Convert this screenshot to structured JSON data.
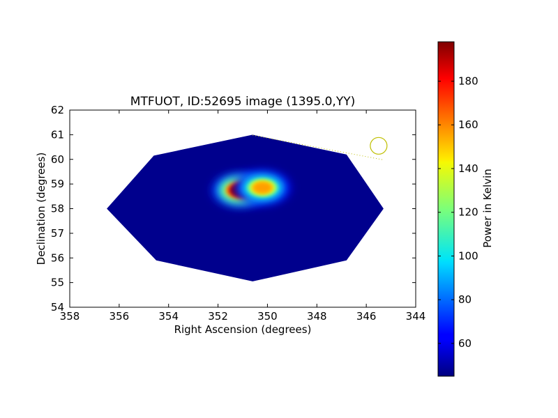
{
  "chart_data": {
    "type": "heatmap",
    "title": "MTFUOT, ID:52695 image (1395.0,YY)",
    "xlabel": "Right Ascension (degrees)",
    "ylabel": "Declination (degrees)",
    "xlim": [
      358,
      344
    ],
    "ylim": [
      54,
      62
    ],
    "x_ticks": [
      358,
      356,
      354,
      352,
      350,
      348,
      346,
      344
    ],
    "y_ticks": [
      54,
      55,
      56,
      57,
      58,
      59,
      60,
      61,
      62
    ],
    "colormap": "jet",
    "colorbar": {
      "label": "Power in Kelvin",
      "range": [
        45,
        198
      ],
      "ticks": [
        60,
        80,
        100,
        120,
        140,
        160,
        180
      ]
    },
    "background_level": 47,
    "coverage_polygon": [
      [
        350.6,
        61.0
      ],
      [
        346.8,
        60.2
      ],
      [
        345.3,
        58.0
      ],
      [
        346.8,
        55.9
      ],
      [
        350.6,
        55.05
      ],
      [
        354.5,
        55.9
      ],
      [
        356.5,
        58.0
      ],
      [
        354.6,
        60.15
      ]
    ],
    "sources": [
      {
        "ra": 351.1,
        "dec": 58.75,
        "peak": 198
      },
      {
        "ra": 350.2,
        "dec": 58.85,
        "peak": 155
      }
    ],
    "beam_marker": {
      "circle_center": [
        345.5,
        60.55
      ],
      "line_from": [
        350.6,
        60.98
      ],
      "line_to": [
        345.3,
        59.98
      ],
      "color": "#bfbf00"
    }
  }
}
